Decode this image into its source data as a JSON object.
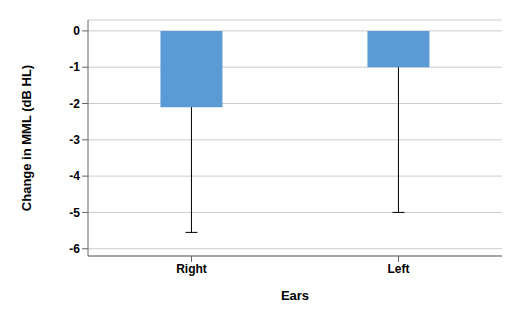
{
  "chart_data": {
    "type": "bar",
    "categories": [
      "Right",
      "Left"
    ],
    "values": [
      -2.1,
      -1.0
    ],
    "error_bar_bottom": [
      -5.55,
      -5.0
    ],
    "color": "#5B9BD5",
    "xlabel": "Ears",
    "ylabel": "Change in MML (dB HL)",
    "ylim": [
      -6.2,
      0.3
    ],
    "yticks": [
      0,
      -1,
      -2,
      -3,
      -4,
      -5,
      -6
    ],
    "grid": true
  }
}
